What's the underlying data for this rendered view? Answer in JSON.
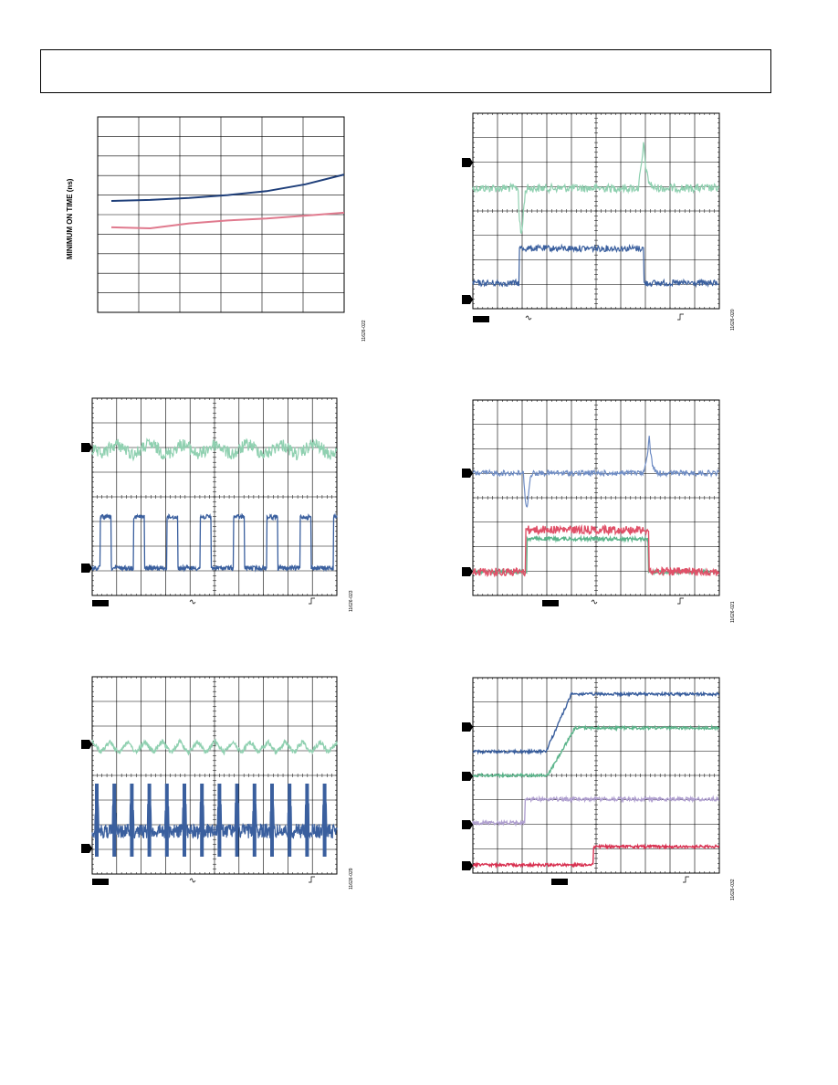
{
  "header": {
    "text": ""
  },
  "colors": {
    "navy": "#1f3f7a",
    "pink": "#e07a8e",
    "mint": "#8fd0b0",
    "steel": "#3a5f9e",
    "periwinkle": "#6e8cc4",
    "red": "#e05068",
    "green": "#5ab48a",
    "lavender": "#b0a0d0",
    "crimson": "#d83050"
  },
  "figures": [
    {
      "id": "fig22",
      "ylabel": "MINIMUM ON TIME (ns)",
      "fignum": "11626-022"
    },
    {
      "id": "fig20",
      "fignum": "11626-020"
    },
    {
      "id": "fig23",
      "fignum": "11626-023"
    },
    {
      "id": "fig21",
      "fignum": "11626-021"
    },
    {
      "id": "fig29",
      "fignum": "11626-029"
    },
    {
      "id": "fig32",
      "fignum": "11626-032"
    }
  ],
  "chart_data": [
    {
      "type": "line",
      "grid": true,
      "ylabel": "MINIMUM ON TIME (ns)",
      "xlabel": "",
      "x": [
        0,
        1,
        2,
        3,
        4,
        5,
        6
      ],
      "series": [
        {
          "values": [
            5.7,
            5.75,
            5.85,
            6.0,
            6.2,
            6.55,
            7.05
          ],
          "color": "navy"
        },
        {
          "values": [
            4.35,
            4.3,
            4.55,
            4.7,
            4.8,
            4.95,
            5.1
          ],
          "color": "pink"
        }
      ],
      "ylim": [
        0,
        10
      ],
      "xlim": [
        0,
        6
      ]
    },
    {
      "type": "line",
      "grid": true,
      "subtype": "oscilloscope",
      "series": [
        {
          "color": "mint"
        },
        {
          "color": "steel"
        }
      ]
    },
    {
      "type": "line",
      "grid": true,
      "subtype": "oscilloscope",
      "series": [
        {
          "color": "mint"
        },
        {
          "color": "steel"
        }
      ]
    },
    {
      "type": "line",
      "grid": true,
      "subtype": "oscilloscope",
      "series": [
        {
          "color": "periwinkle"
        },
        {
          "color": "red"
        },
        {
          "color": "green"
        }
      ]
    },
    {
      "type": "line",
      "grid": true,
      "subtype": "oscilloscope",
      "series": [
        {
          "color": "mint"
        },
        {
          "color": "steel"
        }
      ]
    },
    {
      "type": "line",
      "grid": true,
      "subtype": "oscilloscope",
      "series": [
        {
          "color": "steel"
        },
        {
          "color": "green"
        },
        {
          "color": "lavender"
        },
        {
          "color": "crimson"
        }
      ]
    }
  ]
}
